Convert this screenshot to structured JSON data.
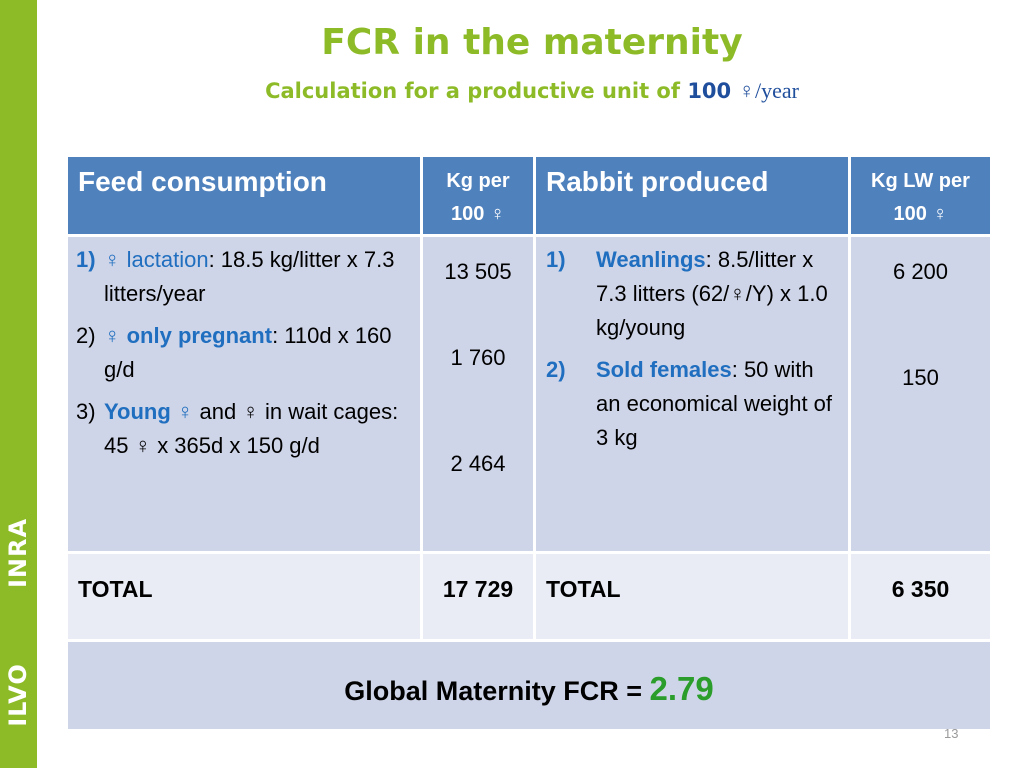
{
  "sidebar": {
    "label_bottom": "ILVO",
    "label_top": "INRA",
    "color": "#8dbb27"
  },
  "title": "FCR in the maternity",
  "subtitle": {
    "prefix": "Calculation for a productive unit of ",
    "number": "100",
    "unit": "♀/year"
  },
  "table": {
    "headers": {
      "feed": "Feed consumption",
      "kg_per_1": "Kg per",
      "kg_per_2": "100 ♀",
      "rabbit": "Rabbit produced",
      "kg_lw_1": "Kg LW per",
      "kg_lw_2": "100 ♀"
    },
    "feed_items": [
      {
        "num": "1)",
        "highlight": "♀ lactation",
        "text": ": 18.5 kg/litter x 7.3 litters/year"
      },
      {
        "num": "2)",
        "highlight": "♀ only pregnant",
        "text": ": 110d x 160 g/d"
      },
      {
        "num": "3)",
        "highlight": "Young ♀",
        "text": " and ♀ in wait cages: 45 ♀ x 365d x 150 g/d"
      }
    ],
    "feed_values": [
      "13 505",
      "1 760",
      "2 464"
    ],
    "rabbit_items": [
      {
        "num": "1)",
        "highlight": "Weanlings",
        "text": ": 8.5/litter x 7.3 litters (62/♀/Y) x  1.0 kg/young"
      },
      {
        "num": "2)",
        "highlight": "Sold females",
        "text": ": 50 with an economical weight of 3 kg"
      }
    ],
    "rabbit_values": [
      "6 200",
      "150"
    ],
    "total_label_left": "TOTAL",
    "total_feed": "17 729",
    "total_label_right": "TOTAL",
    "total_rabbit": "6 350",
    "global_label": "Global Maternity FCR = ",
    "global_value": "2.79"
  },
  "page_number": "13",
  "colors": {
    "header": "#4f81bd",
    "accent_green": "#8dbb27",
    "highlight_blue": "#1f6ebf",
    "fcr_green": "#2a9d2a"
  }
}
